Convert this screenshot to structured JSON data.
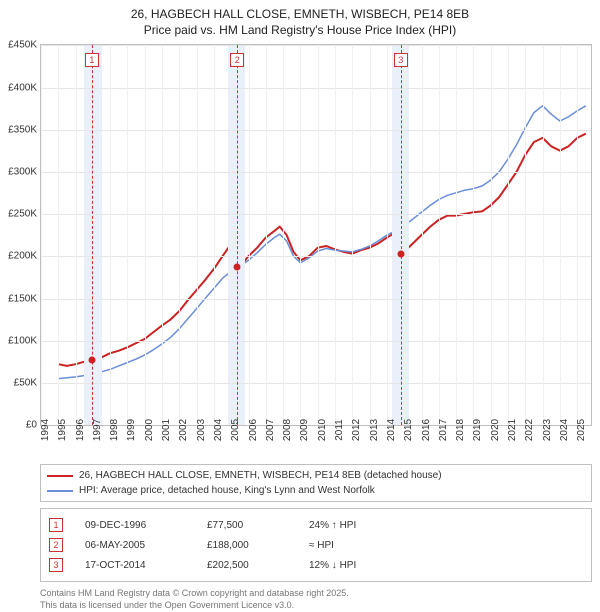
{
  "title_line1": "26, HAGBECH HALL CLOSE, EMNETH, WISBECH, PE14 8EB",
  "title_line2": "Price paid vs. HM Land Registry's House Price Index (HPI)",
  "chart": {
    "type": "line",
    "background_color": "#ffffff",
    "grid_color": "#e6e6e6",
    "vgrid_color": "#f0f0f0",
    "border_color": "#bfbfbf",
    "band_color": "#eaf0fa",
    "xlim": [
      1994,
      2025.8
    ],
    "ylim": [
      0,
      450000
    ],
    "ytick_step": 50000,
    "yticks": [
      "£0",
      "£50K",
      "£100K",
      "£150K",
      "£200K",
      "£250K",
      "£300K",
      "£350K",
      "£400K",
      "£450K"
    ],
    "xticks": [
      1994,
      1995,
      1996,
      1997,
      1998,
      1999,
      2000,
      2001,
      2002,
      2003,
      2004,
      2005,
      2006,
      2007,
      2008,
      2009,
      2010,
      2011,
      2012,
      2013,
      2014,
      2015,
      2016,
      2017,
      2018,
      2019,
      2020,
      2021,
      2022,
      2023,
      2024,
      2025
    ],
    "bands": [
      {
        "from": 1996.5,
        "to": 1997.5
      },
      {
        "from": 2004.8,
        "to": 2005.8
      },
      {
        "from": 2014.3,
        "to": 2015.3
      }
    ],
    "vlines": [
      {
        "x": 1996.94,
        "label": "1"
      },
      {
        "x": 2005.35,
        "label": "2"
      },
      {
        "x": 2014.8,
        "label": "3"
      }
    ],
    "series": [
      {
        "name": "price_paid",
        "color": "#cc2222",
        "stroke_width": 2,
        "legend": "26, HAGBECH HALL CLOSE, EMNETH, WISBECH, PE14 8EB (detached house)",
        "points": [
          [
            1995.0,
            72000
          ],
          [
            1995.5,
            70000
          ],
          [
            1996.0,
            72000
          ],
          [
            1996.5,
            75000
          ],
          [
            1996.94,
            77500
          ],
          [
            1997.5,
            80000
          ],
          [
            1998.0,
            85000
          ],
          [
            1998.5,
            88000
          ],
          [
            1999.0,
            92000
          ],
          [
            1999.5,
            97000
          ],
          [
            2000.0,
            102000
          ],
          [
            2000.5,
            110000
          ],
          [
            2001.0,
            118000
          ],
          [
            2001.5,
            125000
          ],
          [
            2002.0,
            135000
          ],
          [
            2002.5,
            148000
          ],
          [
            2003.0,
            160000
          ],
          [
            2003.5,
            172000
          ],
          [
            2004.0,
            185000
          ],
          [
            2004.5,
            200000
          ],
          [
            2005.0,
            215000
          ],
          [
            2005.2,
            225000
          ],
          [
            2005.35,
            188000
          ],
          [
            2005.6,
            190000
          ],
          [
            2006.0,
            200000
          ],
          [
            2006.5,
            210000
          ],
          [
            2007.0,
            222000
          ],
          [
            2007.5,
            230000
          ],
          [
            2007.8,
            235000
          ],
          [
            2008.2,
            225000
          ],
          [
            2008.6,
            205000
          ],
          [
            2009.0,
            195000
          ],
          [
            2009.5,
            200000
          ],
          [
            2010.0,
            210000
          ],
          [
            2010.5,
            212000
          ],
          [
            2011.0,
            208000
          ],
          [
            2011.5,
            205000
          ],
          [
            2012.0,
            203000
          ],
          [
            2012.5,
            207000
          ],
          [
            2013.0,
            210000
          ],
          [
            2013.5,
            215000
          ],
          [
            2014.0,
            222000
          ],
          [
            2014.5,
            228000
          ],
          [
            2014.8,
            202500
          ],
          [
            2015.0,
            205000
          ],
          [
            2015.5,
            215000
          ],
          [
            2016.0,
            225000
          ],
          [
            2016.5,
            235000
          ],
          [
            2017.0,
            243000
          ],
          [
            2017.5,
            248000
          ],
          [
            2018.0,
            248000
          ],
          [
            2018.5,
            250000
          ],
          [
            2019.0,
            252000
          ],
          [
            2019.5,
            253000
          ],
          [
            2020.0,
            260000
          ],
          [
            2020.5,
            270000
          ],
          [
            2021.0,
            285000
          ],
          [
            2021.5,
            300000
          ],
          [
            2022.0,
            320000
          ],
          [
            2022.5,
            335000
          ],
          [
            2023.0,
            340000
          ],
          [
            2023.5,
            330000
          ],
          [
            2024.0,
            325000
          ],
          [
            2024.5,
            330000
          ],
          [
            2025.0,
            340000
          ],
          [
            2025.5,
            345000
          ]
        ]
      },
      {
        "name": "hpi",
        "color": "#6a8fd8",
        "stroke_width": 1.5,
        "legend": "HPI: Average price, detached house, King's Lynn and West Norfolk",
        "points": [
          [
            1995.0,
            55000
          ],
          [
            1995.5,
            56000
          ],
          [
            1996.0,
            57000
          ],
          [
            1996.5,
            58500
          ],
          [
            1997.0,
            61000
          ],
          [
            1997.5,
            63000
          ],
          [
            1998.0,
            66000
          ],
          [
            1998.5,
            70000
          ],
          [
            1999.0,
            74000
          ],
          [
            1999.5,
            78000
          ],
          [
            2000.0,
            83000
          ],
          [
            2000.5,
            89000
          ],
          [
            2001.0,
            96000
          ],
          [
            2001.5,
            104000
          ],
          [
            2002.0,
            114000
          ],
          [
            2002.5,
            126000
          ],
          [
            2003.0,
            138000
          ],
          [
            2003.5,
            150000
          ],
          [
            2004.0,
            162000
          ],
          [
            2004.5,
            174000
          ],
          [
            2005.0,
            182000
          ],
          [
            2005.5,
            188000
          ],
          [
            2006.0,
            195000
          ],
          [
            2006.5,
            204000
          ],
          [
            2007.0,
            214000
          ],
          [
            2007.5,
            222000
          ],
          [
            2007.8,
            226000
          ],
          [
            2008.2,
            218000
          ],
          [
            2008.6,
            200000
          ],
          [
            2009.0,
            192000
          ],
          [
            2009.5,
            198000
          ],
          [
            2010.0,
            206000
          ],
          [
            2010.5,
            209000
          ],
          [
            2011.0,
            207000
          ],
          [
            2011.5,
            206000
          ],
          [
            2012.0,
            205000
          ],
          [
            2012.5,
            208000
          ],
          [
            2013.0,
            212000
          ],
          [
            2013.5,
            218000
          ],
          [
            2014.0,
            225000
          ],
          [
            2014.5,
            230000
          ],
          [
            2015.0,
            236000
          ],
          [
            2015.5,
            244000
          ],
          [
            2016.0,
            252000
          ],
          [
            2016.5,
            260000
          ],
          [
            2017.0,
            267000
          ],
          [
            2017.5,
            272000
          ],
          [
            2018.0,
            275000
          ],
          [
            2018.5,
            278000
          ],
          [
            2019.0,
            280000
          ],
          [
            2019.5,
            283000
          ],
          [
            2020.0,
            290000
          ],
          [
            2020.5,
            300000
          ],
          [
            2021.0,
            315000
          ],
          [
            2021.5,
            332000
          ],
          [
            2022.0,
            352000
          ],
          [
            2022.5,
            370000
          ],
          [
            2023.0,
            378000
          ],
          [
            2023.5,
            368000
          ],
          [
            2024.0,
            360000
          ],
          [
            2024.5,
            365000
          ],
          [
            2025.0,
            372000
          ],
          [
            2025.5,
            378000
          ]
        ]
      }
    ],
    "markers": [
      {
        "x": 1996.94,
        "y": 77500
      },
      {
        "x": 2005.35,
        "y": 188000
      },
      {
        "x": 2014.8,
        "y": 202500
      }
    ]
  },
  "legend": {
    "rows": [
      {
        "color": "#cc2222",
        "label_path": "chart.series.0.legend"
      },
      {
        "color": "#6a8fd8",
        "label_path": "chart.series.1.legend"
      }
    ]
  },
  "table": {
    "rows": [
      {
        "n": "1",
        "date": "09-DEC-1996",
        "price": "£77,500",
        "hpi": "24% ↑ HPI"
      },
      {
        "n": "2",
        "date": "06-MAY-2005",
        "price": "£188,000",
        "hpi": "≈ HPI"
      },
      {
        "n": "3",
        "date": "17-OCT-2014",
        "price": "£202,500",
        "hpi": "12% ↓ HPI"
      }
    ]
  },
  "footer_line1": "Contains HM Land Registry data © Crown copyright and database right 2025.",
  "footer_line2": "This data is licensed under the Open Government Licence v3.0."
}
